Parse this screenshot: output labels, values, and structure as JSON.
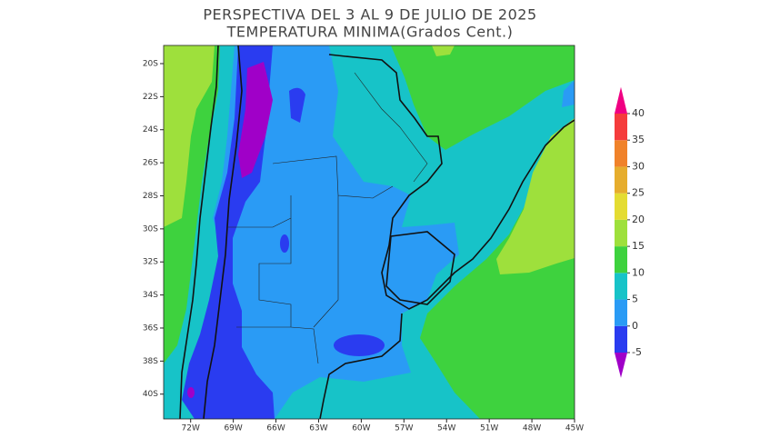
{
  "map": {
    "title": "PERSPECTIVA DEL 3 AL 9 DE JULIO DE 2025",
    "subtitle": "TEMPERATURA MINIMA(Grados Cent.)",
    "lonlim": [
      -73.9,
      -45
    ],
    "latlim": [
      -41.5,
      -18.9
    ],
    "lon_ticks": [
      {
        "value": -72,
        "label": "72W"
      },
      {
        "value": -69,
        "label": "69W"
      },
      {
        "value": -66,
        "label": "66W"
      },
      {
        "value": -63,
        "label": "63W"
      },
      {
        "value": -60,
        "label": "60W"
      },
      {
        "value": -57,
        "label": "57W"
      },
      {
        "value": -54,
        "label": "54W"
      },
      {
        "value": -51,
        "label": "51W"
      },
      {
        "value": -48,
        "label": "48W"
      },
      {
        "value": -45,
        "label": "45W"
      }
    ],
    "lat_ticks": [
      {
        "value": -20,
        "label": "20S"
      },
      {
        "value": -22,
        "label": "22S"
      },
      {
        "value": -24,
        "label": "24S"
      },
      {
        "value": -26,
        "label": "26S"
      },
      {
        "value": -28,
        "label": "28S"
      },
      {
        "value": -30,
        "label": "30S"
      },
      {
        "value": -32,
        "label": "32S"
      },
      {
        "value": -34,
        "label": "34S"
      },
      {
        "value": -36,
        "label": "36S"
      },
      {
        "value": -38,
        "label": "38S"
      },
      {
        "value": -40,
        "label": "40S"
      }
    ],
    "colorbar": {
      "levels": [
        -5,
        0,
        5,
        10,
        15,
        20,
        25,
        30,
        35,
        40
      ],
      "colors": [
        "#a000c8",
        "#2a3cf0",
        "#2a9bf5",
        "#17c3c8",
        "#3ed23e",
        "#9ee03c",
        "#e4dc32",
        "#e6ad2d",
        "#f0822a",
        "#f53c3c",
        "#f00082"
      ]
    }
  }
}
